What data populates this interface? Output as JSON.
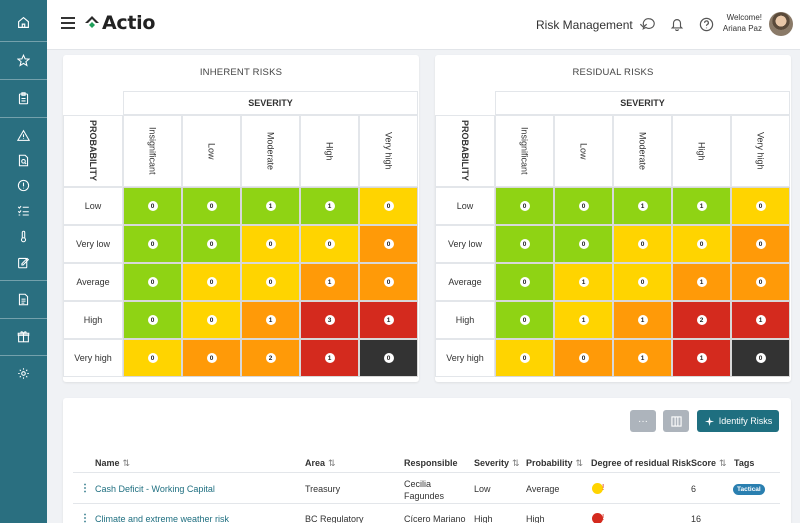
{
  "colors": {
    "sidebar": "#2a6f80",
    "accent": "#1f6f80",
    "green": "#8fd314",
    "yellow": "#ffd400",
    "orange": "#ff9a08",
    "red": "#d42a1e",
    "black": "#333333"
  },
  "sidebar": {
    "icons": [
      "home-icon",
      "star-icon",
      "clipboard-icon",
      "warning-icon",
      "file-search-icon",
      "alert-circle-icon",
      "checklist-icon",
      "thermometer-icon",
      "edit-doc-icon",
      "document-icon",
      "gift-icon",
      "settings-icon"
    ]
  },
  "header": {
    "logo_text": "Actio",
    "module": "Risk Management",
    "welcome": "Welcome!",
    "user_name": "Ariana Paz"
  },
  "matrices": [
    {
      "title": "INHERENT RISKS",
      "severity_label": "SEVERITY",
      "probability_label": "PROBABILITY",
      "severity_levels": [
        "Insignificant",
        "Low",
        "Moderate",
        "High",
        "Very high"
      ],
      "rows": [
        {
          "label": "Low",
          "cells": [
            {
              "v": "0",
              "c": "green"
            },
            {
              "v": "0",
              "c": "green"
            },
            {
              "v": "1",
              "c": "green"
            },
            {
              "v": "1",
              "c": "green"
            },
            {
              "v": "0",
              "c": "yellow"
            }
          ]
        },
        {
          "label": "Very low",
          "cells": [
            {
              "v": "0",
              "c": "green"
            },
            {
              "v": "0",
              "c": "green"
            },
            {
              "v": "0",
              "c": "yellow"
            },
            {
              "v": "0",
              "c": "yellow"
            },
            {
              "v": "0",
              "c": "orange"
            }
          ]
        },
        {
          "label": "Average",
          "cells": [
            {
              "v": "0",
              "c": "green"
            },
            {
              "v": "0",
              "c": "yellow"
            },
            {
              "v": "0",
              "c": "yellow"
            },
            {
              "v": "1",
              "c": "orange"
            },
            {
              "v": "0",
              "c": "orange"
            }
          ]
        },
        {
          "label": "High",
          "cells": [
            {
              "v": "0",
              "c": "green"
            },
            {
              "v": "0",
              "c": "yellow"
            },
            {
              "v": "1",
              "c": "orange"
            },
            {
              "v": "3",
              "c": "red"
            },
            {
              "v": "1",
              "c": "red"
            }
          ]
        },
        {
          "label": "Very high",
          "cells": [
            {
              "v": "0",
              "c": "yellow"
            },
            {
              "v": "0",
              "c": "orange"
            },
            {
              "v": "2",
              "c": "orange"
            },
            {
              "v": "1",
              "c": "red"
            },
            {
              "v": "0",
              "c": "black"
            }
          ]
        }
      ]
    },
    {
      "title": "RESIDUAL RISKS",
      "severity_label": "SEVERITY",
      "probability_label": "PROBABILITY",
      "severity_levels": [
        "Insignificant",
        "Low",
        "Moderate",
        "High",
        "Very high"
      ],
      "rows": [
        {
          "label": "Low",
          "cells": [
            {
              "v": "0",
              "c": "green"
            },
            {
              "v": "0",
              "c": "green"
            },
            {
              "v": "1",
              "c": "green"
            },
            {
              "v": "1",
              "c": "green"
            },
            {
              "v": "0",
              "c": "yellow"
            }
          ]
        },
        {
          "label": "Very low",
          "cells": [
            {
              "v": "0",
              "c": "green"
            },
            {
              "v": "0",
              "c": "green"
            },
            {
              "v": "0",
              "c": "yellow"
            },
            {
              "v": "0",
              "c": "yellow"
            },
            {
              "v": "0",
              "c": "orange"
            }
          ]
        },
        {
          "label": "Average",
          "cells": [
            {
              "v": "0",
              "c": "green"
            },
            {
              "v": "1",
              "c": "yellow"
            },
            {
              "v": "0",
              "c": "yellow"
            },
            {
              "v": "1",
              "c": "orange"
            },
            {
              "v": "0",
              "c": "orange"
            }
          ]
        },
        {
          "label": "High",
          "cells": [
            {
              "v": "0",
              "c": "green"
            },
            {
              "v": "1",
              "c": "yellow"
            },
            {
              "v": "1",
              "c": "orange"
            },
            {
              "v": "2",
              "c": "red"
            },
            {
              "v": "1",
              "c": "red"
            }
          ]
        },
        {
          "label": "Very high",
          "cells": [
            {
              "v": "0",
              "c": "yellow"
            },
            {
              "v": "0",
              "c": "orange"
            },
            {
              "v": "1",
              "c": "orange"
            },
            {
              "v": "1",
              "c": "red"
            },
            {
              "v": "0",
              "c": "black"
            }
          ]
        }
      ]
    }
  ],
  "toolbar": {
    "more_label": "···",
    "identify_label": "Identify Risks"
  },
  "table": {
    "sort_glyph": "⇅",
    "columns": {
      "name": "Name",
      "area": "Area",
      "responsible": "Responsible",
      "severity": "Severity",
      "probability": "Probability",
      "degree": "Degree of residual Risk",
      "score": "Score",
      "tags": "Tags"
    },
    "rows": [
      {
        "name": "Cash Deficit - Working Capital",
        "area": "Treasury",
        "responsible": "Cecilia\nFagundes",
        "severity": "Low",
        "probability": "Average",
        "degree_color": "yellow",
        "degree_mark": "!",
        "score": "6",
        "tag": "Tactical"
      },
      {
        "name": "Climate and extreme weather risk",
        "area": "BC Regulatory",
        "responsible": "Cícero Mariano",
        "severity": "High",
        "probability": "High",
        "degree_color": "red",
        "degree_mark": "!",
        "score": "16",
        "tag": ""
      }
    ]
  }
}
